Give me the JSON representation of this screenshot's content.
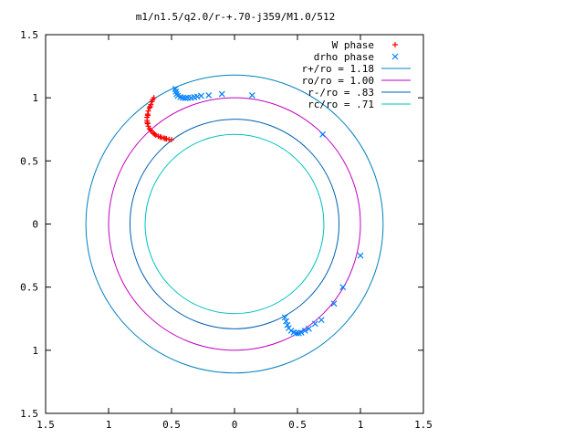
{
  "chart_data": {
    "type": "scatter",
    "title": "m1/n1.5/q2.0/r-+.70-j359/M1.0/512",
    "xlabel": "",
    "ylabel": "",
    "xlim": [
      -1.5,
      1.5
    ],
    "ylim": [
      -1.5,
      1.5
    ],
    "grid": false,
    "legend_position": "top-right",
    "x_ticks": [
      -1.5,
      -1,
      -0.5,
      0,
      0.5,
      1,
      1.5
    ],
    "y_ticks": [
      -1.5,
      -1,
      -0.5,
      0,
      0.5,
      1,
      1.5
    ],
    "x_tick_labels": [
      "1.5",
      "1",
      "0.5",
      "0",
      "0.5",
      "1",
      "1.5"
    ],
    "y_tick_labels": [
      "1.5",
      "1",
      "0.5",
      "0",
      "0.5",
      "1",
      "1.5"
    ],
    "series": [
      {
        "name": "W phase",
        "marker": "+",
        "color": "#ff0000",
        "points": [
          [
            -0.64,
            1.0
          ],
          [
            -0.655,
            0.97
          ],
          [
            -0.665,
            0.945
          ],
          [
            -0.675,
            0.92
          ],
          [
            -0.685,
            0.895
          ],
          [
            -0.69,
            0.87
          ],
          [
            -0.695,
            0.845
          ],
          [
            -0.695,
            0.82
          ],
          [
            -0.69,
            0.795
          ],
          [
            -0.685,
            0.775
          ],
          [
            -0.675,
            0.755
          ],
          [
            -0.66,
            0.735
          ],
          [
            -0.645,
            0.72
          ],
          [
            -0.625,
            0.705
          ],
          [
            -0.605,
            0.695
          ],
          [
            -0.58,
            0.685
          ],
          [
            -0.56,
            0.68
          ],
          [
            -0.54,
            0.675
          ],
          [
            -0.52,
            0.67
          ],
          [
            -0.5,
            0.668
          ],
          [
            -0.65,
            0.985
          ],
          [
            -0.67,
            0.93
          ],
          [
            -0.688,
            0.86
          ],
          [
            -0.693,
            0.805
          ],
          [
            -0.668,
            0.745
          ],
          [
            -0.635,
            0.712
          ],
          [
            -0.59,
            0.69
          ],
          [
            -0.55,
            0.677
          ]
        ]
      },
      {
        "name": "drho phase",
        "marker": "x",
        "color": "#0080ff",
        "points": [
          [
            -0.47,
            1.07
          ],
          [
            -0.465,
            1.05
          ],
          [
            -0.46,
            1.03
          ],
          [
            -0.45,
            1.015
          ],
          [
            -0.43,
            1.005
          ],
          [
            -0.41,
            1.0
          ],
          [
            -0.39,
            0.998
          ],
          [
            -0.37,
            1.0
          ],
          [
            -0.345,
            1.0
          ],
          [
            -0.32,
            1.005
          ],
          [
            -0.295,
            1.01
          ],
          [
            -0.265,
            1.015
          ],
          [
            -0.205,
            1.02
          ],
          [
            -0.1,
            1.03
          ],
          [
            0.14,
            1.02
          ],
          [
            0.7,
            0.71
          ],
          [
            1.0,
            -0.25
          ],
          [
            0.4,
            -0.74
          ],
          [
            0.41,
            -0.77
          ],
          [
            0.42,
            -0.8
          ],
          [
            0.43,
            -0.825
          ],
          [
            0.45,
            -0.845
          ],
          [
            0.47,
            -0.858
          ],
          [
            0.49,
            -0.865
          ],
          [
            0.51,
            -0.865
          ],
          [
            0.53,
            -0.86
          ],
          [
            0.56,
            -0.845
          ],
          [
            0.59,
            -0.83
          ],
          [
            0.64,
            -0.79
          ],
          [
            0.69,
            -0.76
          ],
          [
            0.79,
            -0.63
          ],
          [
            0.86,
            -0.5
          ]
        ]
      },
      {
        "name": "r+/ro = 1.18",
        "type": "circle",
        "radius": 1.18,
        "color": "#0080c0"
      },
      {
        "name": "ro/ro = 1.00",
        "type": "circle",
        "radius": 1.0,
        "color": "#c000c0"
      },
      {
        "name": "r-/ro = .83",
        "type": "circle",
        "radius": 0.83,
        "color": "#0060b0"
      },
      {
        "name": "rc/ro = .71",
        "type": "circle",
        "radius": 0.71,
        "color": "#00c0c0"
      }
    ]
  }
}
